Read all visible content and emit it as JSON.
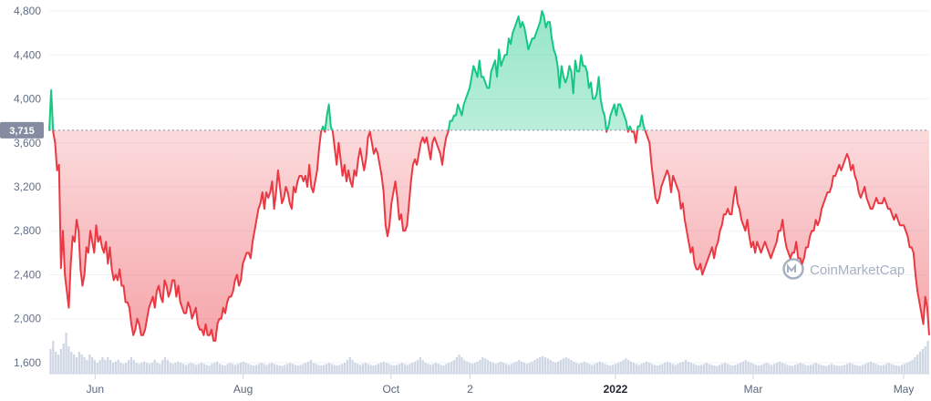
{
  "chart_data": {
    "type": "area",
    "title": "",
    "ylim": [
      1500,
      4900
    ],
    "y_ticks": [
      "4,800",
      "4,400",
      "4,000",
      "3,600",
      "3,200",
      "2,800",
      "2,400",
      "2,000",
      "1,600"
    ],
    "x_ticks": [
      "Jun",
      "Aug",
      "Oct",
      "2",
      "2022",
      "Mar",
      "May"
    ],
    "x_ticks_bold": [
      "2022"
    ],
    "baseline_value": 3715,
    "baseline_label": "3,715",
    "above_color": "#16c784",
    "below_color": "#ea3943",
    "x_range": [
      0,
      345
    ],
    "x_tick_positions": [
      18,
      76,
      134,
      165,
      222,
      276,
      335
    ],
    "series": [
      {
        "values": [
          3710,
          4080,
          3700,
          3600,
          3350,
          3400,
          2460,
          2800,
          2400,
          2250,
          2100,
          2500,
          2750,
          2700,
          2900,
          2800,
          2450,
          2300,
          2400,
          2650,
          2600,
          2800,
          2700,
          2600,
          2850,
          2700,
          2750,
          2650,
          2600,
          2700,
          2500,
          2650,
          2450,
          2350,
          2400,
          2350,
          2450,
          2300,
          2300,
          2150,
          2150,
          2100,
          1950,
          1850,
          1900,
          2000,
          1950,
          1850,
          1850,
          1900,
          2000,
          2100,
          2150,
          2200,
          2100,
          2250,
          2300,
          2200,
          2150,
          2350,
          2300,
          2200,
          2250,
          2350,
          2350,
          2200,
          2300,
          2150,
          2100,
          2050,
          2050,
          2150,
          2100,
          2000,
          2050,
          2100,
          1950,
          1900,
          1900,
          1850,
          1950,
          1850,
          1850,
          1900,
          1800,
          1800,
          1950,
          2000,
          2000,
          2100,
          2050,
          2150,
          2200,
          2200,
          2250,
          2350,
          2400,
          2300,
          2350,
          2500,
          2550,
          2600,
          2600,
          2550,
          2700,
          2800,
          2900,
          3000,
          3050,
          3150,
          3000,
          3150,
          3100,
          3150,
          3250,
          3000,
          3150,
          3350,
          3200,
          3050,
          3100,
          3200,
          3150,
          3050,
          3000,
          3200,
          3150,
          3250,
          3300,
          3300,
          3250,
          3300,
          3200,
          3400,
          3200,
          3150,
          3250,
          3350,
          3550,
          3700,
          3750,
          3700,
          3850,
          3950,
          3750,
          3700,
          3550,
          3400,
          3600,
          3450,
          3300,
          3400,
          3250,
          3350,
          3250,
          3200,
          3350,
          3300,
          3450,
          3550,
          3450,
          3350,
          3450,
          3650,
          3700,
          3600,
          3500,
          3550,
          3500,
          3400,
          3300,
          3150,
          2850,
          2750,
          2850,
          3050,
          3150,
          3250,
          3100,
          2900,
          2950,
          2800,
          2800,
          2850,
          3050,
          3250,
          3400,
          3450,
          3400,
          3500,
          3600,
          3650,
          3600,
          3650,
          3550,
          3450,
          3600,
          3650,
          3600,
          3550,
          3500,
          3400,
          3550,
          3650,
          3700,
          3800,
          3800,
          3850,
          3850,
          3950,
          3900,
          3850,
          3950,
          4000,
          4050,
          4100,
          4200,
          4300,
          4250,
          4200,
          4350,
          4200,
          4200,
          4150,
          4100,
          4100,
          4250,
          4300,
          4350,
          4200,
          4450,
          4300,
          4350,
          4400,
          4400,
          4550,
          4500,
          4600,
          4650,
          4700,
          4750,
          4650,
          4700,
          4650,
          4550,
          4450,
          4500,
          4550,
          4550,
          4600,
          4650,
          4700,
          4800,
          4750,
          4650,
          4700,
          4700,
          4550,
          4450,
          4400,
          4300,
          4100,
          4300,
          4200,
          4150,
          4200,
          4300,
          4250,
          4050,
          4350,
          4250,
          4250,
          4400,
          4300,
          4300,
          4250,
          4100,
          4150,
          4000,
          4000,
          4050,
          4200,
          4000,
          3900,
          3850,
          3700,
          3750,
          3850,
          3900,
          3950,
          3850,
          3950,
          3950,
          3900,
          3850,
          3800,
          3700,
          3750,
          3700,
          3700,
          3600,
          3750,
          3750,
          3850,
          3750,
          3700,
          3650,
          3600,
          3400,
          3250,
          3100,
          3050,
          3100,
          3200,
          3250,
          3300,
          3350,
          3300,
          3150,
          3300,
          3250,
          3200,
          3150,
          3000,
          3050,
          2900,
          2800,
          2700,
          2600,
          2650,
          2500,
          2450,
          2450,
          2500,
          2400,
          2450,
          2500,
          2550,
          2600,
          2650,
          2550,
          2650,
          2700,
          2800,
          2850,
          2950,
          2950,
          3000,
          2950,
          2950,
          3100,
          3200,
          3050,
          3000,
          2900,
          2850,
          2800,
          2900,
          2750,
          2650,
          2700,
          2600,
          2700,
          2650,
          2600,
          2650,
          2700,
          2650,
          2600,
          2550,
          2600,
          2650,
          2700,
          2800,
          2800,
          2900,
          2750,
          2650,
          2600,
          2550,
          2600,
          2600,
          2700,
          2550,
          2550,
          2500,
          2550,
          2650,
          2650,
          2750,
          2800,
          2800,
          2900,
          2850,
          2900,
          3000,
          3050,
          3100,
          3150,
          3150,
          3200,
          3300,
          3300,
          3350,
          3400,
          3350,
          3400,
          3450,
          3500,
          3450,
          3350,
          3400,
          3300,
          3250,
          3150,
          3100,
          3150,
          3200,
          3100,
          3050,
          3000,
          3000,
          3050,
          3100,
          3050,
          3050,
          3050,
          3100,
          3050,
          3000,
          3000,
          2950,
          2900,
          2950,
          2900,
          2850,
          2850,
          2850,
          2800,
          2750,
          2650,
          2650,
          2600,
          2400,
          2250,
          2150,
          2050,
          1950,
          2200,
          2100,
          1850
        ]
      }
    ],
    "volume_bars": [
      0.45,
      0.6,
      0.4,
      0.35,
      0.45,
      0.55,
      0.75,
      0.5,
      0.4,
      0.35,
      0.3,
      0.4,
      0.35,
      0.3,
      0.25,
      0.35,
      0.3,
      0.25,
      0.2,
      0.25,
      0.3,
      0.25,
      0.3,
      0.25,
      0.2,
      0.22,
      0.25,
      0.2,
      0.18,
      0.2,
      0.25,
      0.3,
      0.25,
      0.2,
      0.18,
      0.2,
      0.22,
      0.2,
      0.18,
      0.2,
      0.25,
      0.2,
      0.18,
      0.25,
      0.3,
      0.25,
      0.2,
      0.18,
      0.2,
      0.22,
      0.2,
      0.18,
      0.16,
      0.18,
      0.2,
      0.18,
      0.16,
      0.18,
      0.2,
      0.18,
      0.16,
      0.15,
      0.18,
      0.2,
      0.22,
      0.18,
      0.16,
      0.15,
      0.18,
      0.2,
      0.18,
      0.16,
      0.18,
      0.2,
      0.22,
      0.2,
      0.18,
      0.16,
      0.15,
      0.16,
      0.18,
      0.2,
      0.18,
      0.16,
      0.18,
      0.2,
      0.18,
      0.16,
      0.15,
      0.14,
      0.16,
      0.18,
      0.2,
      0.18,
      0.16,
      0.15,
      0.16,
      0.18,
      0.2,
      0.22,
      0.25,
      0.2,
      0.18,
      0.16,
      0.15,
      0.16,
      0.18,
      0.2,
      0.18,
      0.16,
      0.15,
      0.16,
      0.18,
      0.2,
      0.25,
      0.3,
      0.25,
      0.2,
      0.18,
      0.16,
      0.18,
      0.2,
      0.18,
      0.16,
      0.15,
      0.16,
      0.18,
      0.2,
      0.22,
      0.2,
      0.18,
      0.16,
      0.15,
      0.16,
      0.18,
      0.2,
      0.18,
      0.16,
      0.18,
      0.2,
      0.22,
      0.25,
      0.3,
      0.25,
      0.2,
      0.18,
      0.16,
      0.18,
      0.2,
      0.18,
      0.16,
      0.15,
      0.18,
      0.2,
      0.22,
      0.25,
      0.3,
      0.35,
      0.3,
      0.25,
      0.22,
      0.2,
      0.18,
      0.2,
      0.22,
      0.25,
      0.3,
      0.28,
      0.25,
      0.22,
      0.2,
      0.18,
      0.2,
      0.22,
      0.2,
      0.18,
      0.16,
      0.18,
      0.2,
      0.22,
      0.25,
      0.22,
      0.2,
      0.18,
      0.2,
      0.22,
      0.25,
      0.28,
      0.3,
      0.32,
      0.3,
      0.28,
      0.25,
      0.22,
      0.2,
      0.22,
      0.25,
      0.28,
      0.3,
      0.28,
      0.25,
      0.22,
      0.2,
      0.18,
      0.2,
      0.22,
      0.2,
      0.18,
      0.16,
      0.18,
      0.2,
      0.22,
      0.2,
      0.18,
      0.16,
      0.15,
      0.16,
      0.18,
      0.2,
      0.22,
      0.25,
      0.28,
      0.25,
      0.22,
      0.2,
      0.18,
      0.16,
      0.18,
      0.2,
      0.22,
      0.2,
      0.18,
      0.16,
      0.15,
      0.16,
      0.18,
      0.2,
      0.22,
      0.2,
      0.18,
      0.16,
      0.18,
      0.2,
      0.22,
      0.25,
      0.22,
      0.2,
      0.18,
      0.16,
      0.15,
      0.16,
      0.18,
      0.2,
      0.18,
      0.16,
      0.15,
      0.14,
      0.16,
      0.18,
      0.2,
      0.18,
      0.16,
      0.15,
      0.16,
      0.18,
      0.2,
      0.22,
      0.25,
      0.22,
      0.2,
      0.18,
      0.16,
      0.15,
      0.16,
      0.18,
      0.2,
      0.18,
      0.16,
      0.18,
      0.2,
      0.22,
      0.2,
      0.18,
      0.16,
      0.15,
      0.14,
      0.16,
      0.18,
      0.2,
      0.18,
      0.16,
      0.15,
      0.16,
      0.18,
      0.2,
      0.18,
      0.16,
      0.15,
      0.14,
      0.16,
      0.18,
      0.16,
      0.15,
      0.14,
      0.15,
      0.16,
      0.18,
      0.2,
      0.18,
      0.16,
      0.15,
      0.14,
      0.16,
      0.18,
      0.2,
      0.22,
      0.2,
      0.18,
      0.16,
      0.15,
      0.16,
      0.18,
      0.2,
      0.18,
      0.16,
      0.15,
      0.14,
      0.16,
      0.18,
      0.2,
      0.22,
      0.25,
      0.3,
      0.35,
      0.4,
      0.45,
      0.5,
      0.6
    ]
  },
  "watermark": {
    "text": "CoinMarketCap",
    "icon": "coinmarketcap-logo-icon"
  }
}
